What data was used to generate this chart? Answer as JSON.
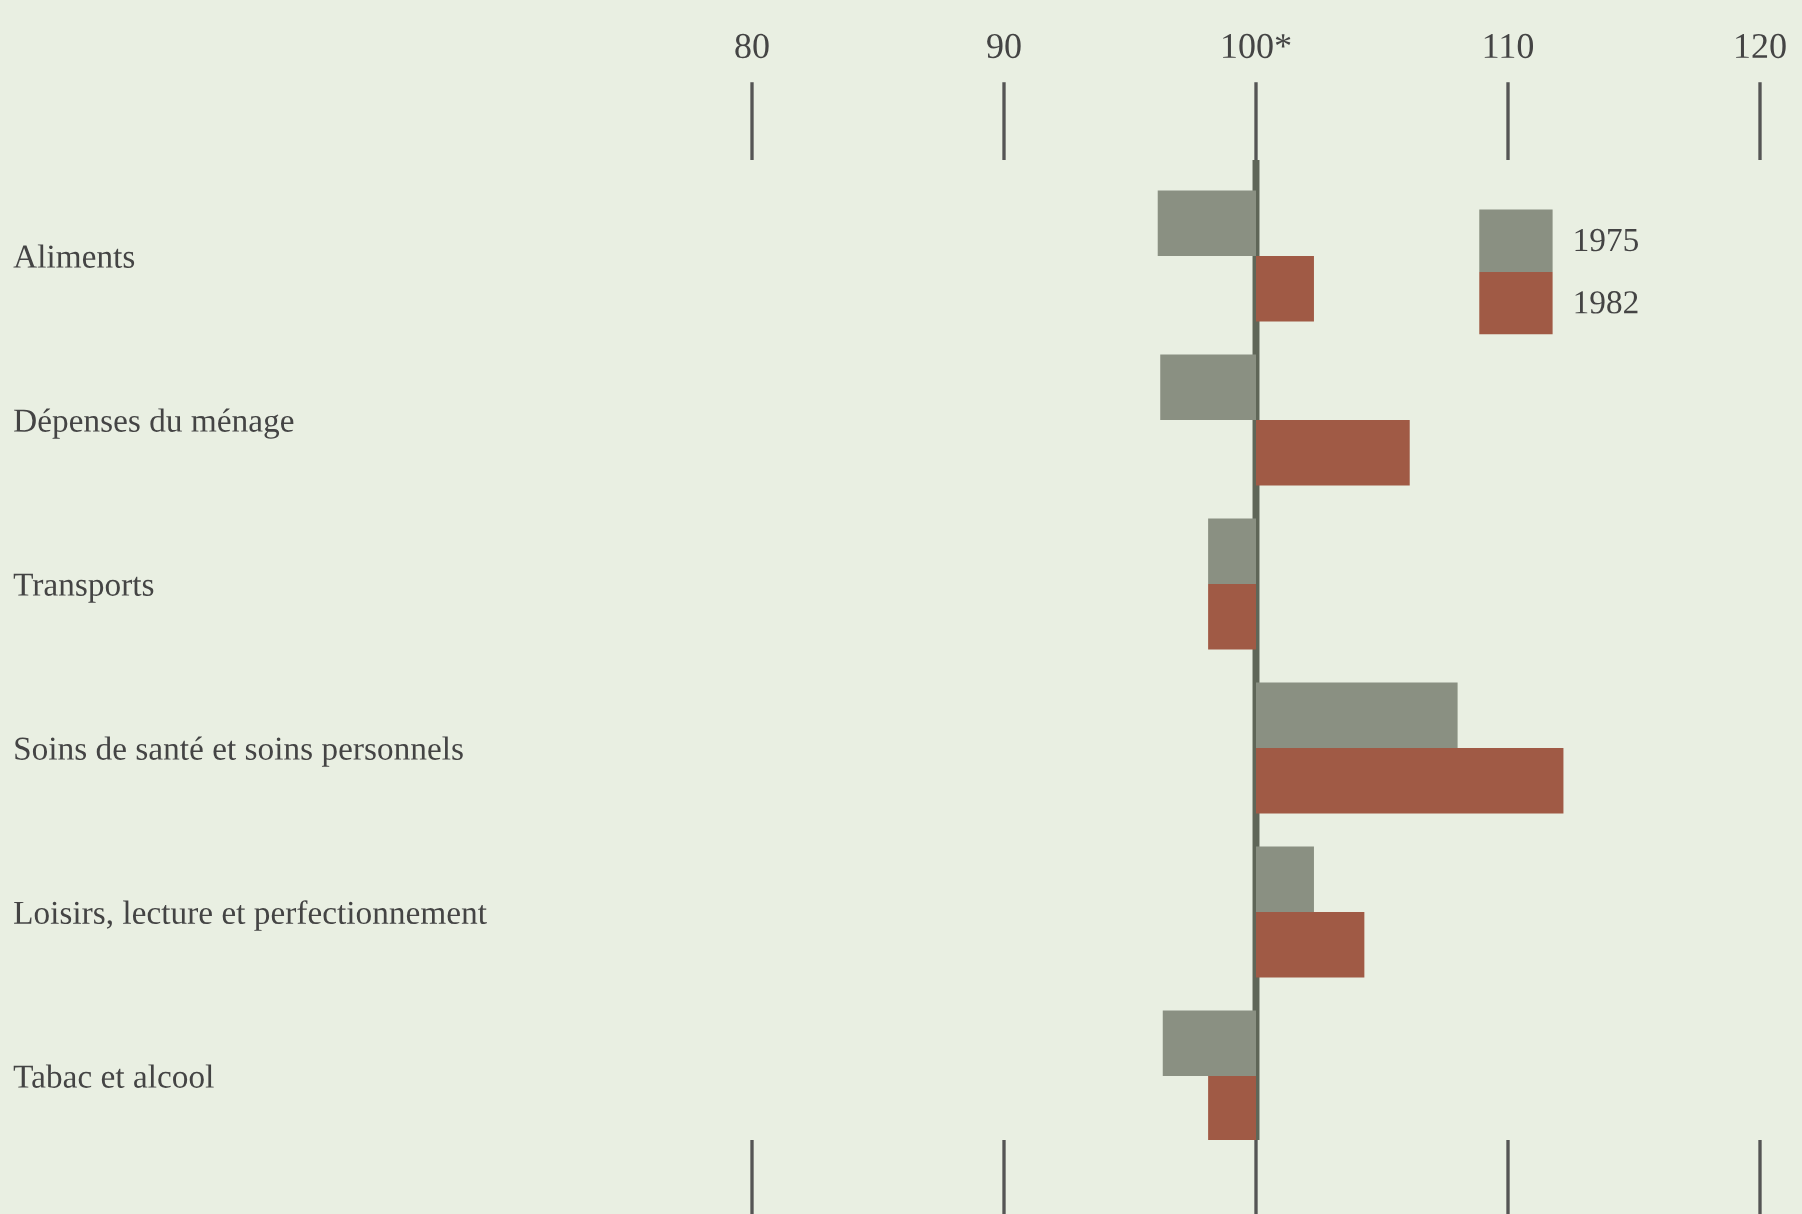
{
  "chart_data": {
    "type": "bar",
    "orientation": "horizontal",
    "categories": [
      "Aliments",
      "Dépenses du ménage",
      "Transports",
      "Soins de santé et soins personnels",
      "Loisirs, lecture et perfectionnement",
      "Tabac et alcool"
    ],
    "series": [
      {
        "name": "1975",
        "color": "#8a9082",
        "base": [
          100,
          100,
          100,
          100,
          100,
          100
        ],
        "values": [
          -3.9,
          -3.8,
          -1.9,
          8.0,
          2.3,
          -3.7
        ]
      },
      {
        "name": "1982",
        "color": "#a05a45",
        "base": [
          100,
          100,
          100,
          100,
          100,
          100
        ],
        "values": [
          2.3,
          6.1,
          -1.9,
          12.2,
          4.3,
          -1.9
        ]
      }
    ],
    "xlim": [
      80,
      120
    ],
    "xticks": [
      80,
      90,
      {
        "value": 100,
        "label": "100*"
      },
      110,
      120
    ],
    "ref_lines": [
      {
        "axis": "x",
        "value": 100,
        "color": "#5f6658"
      }
    ],
    "legend": "top right",
    "grid": false
  }
}
